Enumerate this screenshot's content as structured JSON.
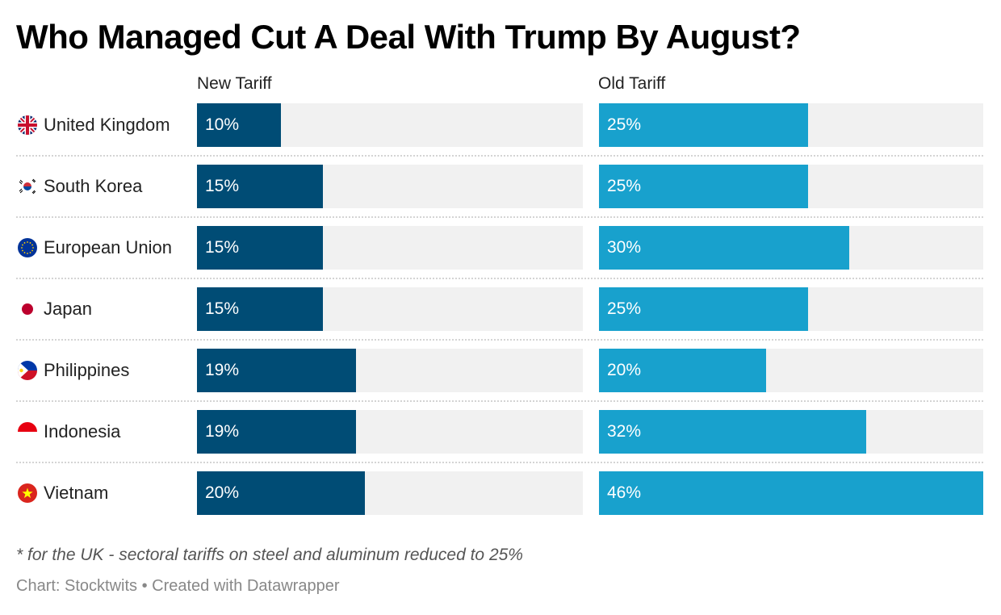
{
  "chart_data": {
    "type": "bar",
    "title": "Who Managed Cut A Deal With Trump By August?",
    "xlim": [
      0,
      46
    ],
    "categories": [
      "United Kingdom",
      "South Korea",
      "European Union",
      "Japan",
      "Philippines",
      "Indonesia",
      "Vietnam"
    ],
    "flags": [
      "uk-flag-icon",
      "south-korea-flag-icon",
      "eu-flag-icon",
      "japan-flag-icon",
      "philippines-flag-icon",
      "indonesia-flag-icon",
      "vietnam-flag-icon"
    ],
    "series": [
      {
        "name": "New Tariff",
        "color": "#004c75",
        "values": [
          10,
          15,
          15,
          15,
          19,
          19,
          20
        ],
        "labels": [
          "10%",
          "15%",
          "15%",
          "15%",
          "19%",
          "19%",
          "20%"
        ]
      },
      {
        "name": "Old Tariff",
        "color": "#18a1cd",
        "values": [
          25,
          25,
          30,
          25,
          20,
          32,
          46
        ],
        "labels": [
          "25%",
          "25%",
          "30%",
          "25%",
          "20%",
          "32%",
          "46%"
        ]
      }
    ],
    "footnote": "* for the UK - sectoral tariffs on steel and aluminum reduced to 25%",
    "credit": "Chart: Stocktwits • Created with Datawrapper"
  }
}
